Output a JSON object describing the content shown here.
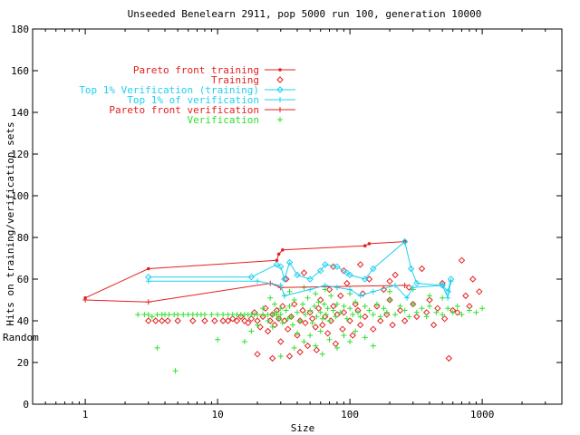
{
  "chart_data": {
    "type": "scatter",
    "title": "Unseeded Benelearn 2911, pop 5000 run 100, generation 10000",
    "xlabel": "Size",
    "ylabel": "Hits on training/verification sets",
    "ylabel2": "Random",
    "xscale": "log",
    "xlim": [
      0.4,
      4000
    ],
    "ylim": [
      0,
      180
    ],
    "x_ticks": [
      1,
      10,
      100,
      1000
    ],
    "y_ticks": [
      0,
      20,
      40,
      60,
      80,
      100,
      120,
      140,
      160,
      180
    ],
    "legend_position": "top-left",
    "grid": false,
    "random_level": 40,
    "series": [
      {
        "name": "Pareto front training",
        "style": "line-dot",
        "color": "#e52020",
        "points": [
          [
            1,
            51
          ],
          [
            3,
            65
          ],
          [
            28,
            69
          ],
          [
            29,
            72
          ],
          [
            31,
            74
          ],
          [
            130,
            76
          ],
          [
            140,
            77
          ],
          [
            260,
            78
          ]
        ]
      },
      {
        "name": "Training",
        "style": "diamond",
        "color": "#e52020",
        "points": [
          [
            3,
            40
          ],
          [
            3.4,
            40
          ],
          [
            3.8,
            40
          ],
          [
            4.2,
            40
          ],
          [
            5,
            40
          ],
          [
            6.5,
            40
          ],
          [
            8,
            40
          ],
          [
            9.5,
            40
          ],
          [
            11,
            40
          ],
          [
            12,
            40
          ],
          [
            13,
            41
          ],
          [
            14,
            40
          ],
          [
            15,
            42
          ],
          [
            16,
            40
          ],
          [
            17,
            39
          ],
          [
            18,
            41
          ],
          [
            19,
            44
          ],
          [
            20,
            40
          ],
          [
            21,
            37
          ],
          [
            22,
            42
          ],
          [
            23,
            46
          ],
          [
            24,
            35
          ],
          [
            25,
            40
          ],
          [
            26,
            43
          ],
          [
            27,
            38
          ],
          [
            28,
            45
          ],
          [
            29,
            41
          ],
          [
            30,
            30
          ],
          [
            31,
            47
          ],
          [
            32,
            40
          ],
          [
            34,
            36
          ],
          [
            36,
            42
          ],
          [
            38,
            48
          ],
          [
            40,
            33
          ],
          [
            42,
            40
          ],
          [
            44,
            45
          ],
          [
            46,
            39
          ],
          [
            48,
            28
          ],
          [
            50,
            44
          ],
          [
            52,
            41
          ],
          [
            55,
            37
          ],
          [
            58,
            46
          ],
          [
            60,
            50
          ],
          [
            62,
            38
          ],
          [
            65,
            42
          ],
          [
            68,
            34
          ],
          [
            70,
            55
          ],
          [
            72,
            40
          ],
          [
            75,
            47
          ],
          [
            78,
            29
          ],
          [
            80,
            43
          ],
          [
            85,
            52
          ],
          [
            88,
            36
          ],
          [
            90,
            44
          ],
          [
            95,
            58
          ],
          [
            100,
            40
          ],
          [
            105,
            33
          ],
          [
            110,
            48
          ],
          [
            115,
            45
          ],
          [
            120,
            38
          ],
          [
            125,
            53
          ],
          [
            130,
            42
          ],
          [
            140,
            60
          ],
          [
            150,
            36
          ],
          [
            160,
            47
          ],
          [
            170,
            40
          ],
          [
            180,
            55
          ],
          [
            190,
            43
          ],
          [
            200,
            50
          ],
          [
            210,
            38
          ],
          [
            220,
            62
          ],
          [
            240,
            45
          ],
          [
            260,
            40
          ],
          [
            280,
            56
          ],
          [
            300,
            48
          ],
          [
            320,
            42
          ],
          [
            350,
            65
          ],
          [
            380,
            44
          ],
          [
            400,
            50
          ],
          [
            430,
            38
          ],
          [
            460,
            46
          ],
          [
            500,
            58
          ],
          [
            520,
            41
          ],
          [
            560,
            22
          ],
          [
            600,
            45
          ],
          [
            650,
            44
          ],
          [
            700,
            69
          ],
          [
            750,
            52
          ],
          [
            800,
            47
          ],
          [
            850,
            60
          ],
          [
            950,
            54
          ],
          [
            35,
            23
          ],
          [
            42,
            25
          ],
          [
            56,
            26
          ],
          [
            26,
            22
          ],
          [
            20,
            24
          ],
          [
            33,
            60
          ],
          [
            45,
            63
          ],
          [
            75,
            66
          ],
          [
            90,
            64
          ],
          [
            120,
            67
          ],
          [
            200,
            59
          ]
        ]
      },
      {
        "name": "Top 1% Verification (training)",
        "style": "line-diamond",
        "color": "#20d0f0",
        "points": [
          [
            3,
            61
          ],
          [
            18,
            61
          ],
          [
            28,
            67
          ],
          [
            30,
            66
          ],
          [
            32,
            60
          ],
          [
            35,
            68
          ],
          [
            40,
            62
          ],
          [
            50,
            60
          ],
          [
            60,
            64
          ],
          [
            65,
            67
          ],
          [
            80,
            66
          ],
          [
            95,
            63
          ],
          [
            100,
            62
          ],
          [
            130,
            60
          ],
          [
            150,
            65
          ],
          [
            260,
            78
          ],
          [
            290,
            65
          ],
          [
            320,
            58
          ],
          [
            500,
            57
          ],
          [
            550,
            54
          ],
          [
            580,
            60
          ]
        ]
      },
      {
        "name": "Top 1% of verification",
        "style": "line-plus",
        "color": "#20d0f0",
        "points": [
          [
            3,
            59
          ],
          [
            20,
            59
          ],
          [
            30,
            57
          ],
          [
            32,
            52
          ],
          [
            50,
            55
          ],
          [
            65,
            57
          ],
          [
            80,
            56
          ],
          [
            100,
            55
          ],
          [
            120,
            52
          ],
          [
            150,
            54
          ],
          [
            220,
            57
          ],
          [
            270,
            51
          ],
          [
            300,
            56
          ],
          [
            500,
            57
          ],
          [
            550,
            51
          ],
          [
            580,
            59
          ]
        ]
      },
      {
        "name": "Pareto front verification",
        "style": "line-plus",
        "color": "#e52020",
        "points": [
          [
            1,
            50
          ],
          [
            3,
            49
          ],
          [
            25,
            58
          ],
          [
            30,
            56
          ],
          [
            260,
            57
          ]
        ]
      },
      {
        "name": "Verification",
        "style": "plus",
        "color": "#30e030",
        "points": [
          [
            2.5,
            43
          ],
          [
            2.8,
            43
          ],
          [
            3,
            43
          ],
          [
            3.2,
            42
          ],
          [
            3.5,
            43
          ],
          [
            3.8,
            43
          ],
          [
            4,
            43
          ],
          [
            4.3,
            43
          ],
          [
            4.7,
            43
          ],
          [
            5,
            43
          ],
          [
            5.5,
            43
          ],
          [
            6,
            43
          ],
          [
            6.5,
            43
          ],
          [
            7,
            43
          ],
          [
            7.5,
            43
          ],
          [
            8,
            43
          ],
          [
            9,
            43
          ],
          [
            10,
            43
          ],
          [
            11,
            43
          ],
          [
            12,
            43
          ],
          [
            13,
            43
          ],
          [
            14,
            43
          ],
          [
            15,
            43
          ],
          [
            16,
            43
          ],
          [
            17,
            43
          ],
          [
            18,
            43
          ],
          [
            19,
            43
          ],
          [
            20,
            43
          ],
          [
            22,
            43
          ],
          [
            24,
            43
          ],
          [
            26,
            43
          ],
          [
            28,
            43
          ],
          [
            30,
            43
          ],
          [
            3.5,
            27
          ],
          [
            4.8,
            16
          ],
          [
            10,
            31
          ],
          [
            16,
            30
          ],
          [
            18,
            35
          ],
          [
            20,
            38
          ],
          [
            22,
            46
          ],
          [
            24,
            40
          ],
          [
            26,
            37
          ],
          [
            27,
            48
          ],
          [
            28,
            44
          ],
          [
            29,
            41
          ],
          [
            30,
            46
          ],
          [
            31,
            39
          ],
          [
            32,
            52
          ],
          [
            33,
            45
          ],
          [
            34,
            41
          ],
          [
            35,
            47
          ],
          [
            36,
            42
          ],
          [
            37,
            38
          ],
          [
            38,
            50
          ],
          [
            40,
            44
          ],
          [
            42,
            40
          ],
          [
            44,
            48
          ],
          [
            46,
            43
          ],
          [
            48,
            51
          ],
          [
            50,
            45
          ],
          [
            52,
            39
          ],
          [
            54,
            47
          ],
          [
            56,
            42
          ],
          [
            58,
            49
          ],
          [
            60,
            44
          ],
          [
            62,
            41
          ],
          [
            64,
            48
          ],
          [
            66,
            43
          ],
          [
            68,
            46
          ],
          [
            70,
            40
          ],
          [
            72,
            52
          ],
          [
            75,
            45
          ],
          [
            78,
            42
          ],
          [
            80,
            48
          ],
          [
            85,
            44
          ],
          [
            90,
            47
          ],
          [
            95,
            41
          ],
          [
            100,
            46
          ],
          [
            105,
            43
          ],
          [
            110,
            49
          ],
          [
            115,
            44
          ],
          [
            120,
            42
          ],
          [
            130,
            47
          ],
          [
            140,
            45
          ],
          [
            150,
            43
          ],
          [
            160,
            48
          ],
          [
            170,
            42
          ],
          [
            180,
            46
          ],
          [
            190,
            44
          ],
          [
            200,
            50
          ],
          [
            220,
            43
          ],
          [
            240,
            47
          ],
          [
            260,
            45
          ],
          [
            280,
            42
          ],
          [
            300,
            48
          ],
          [
            320,
            44
          ],
          [
            350,
            46
          ],
          [
            380,
            42
          ],
          [
            400,
            47
          ],
          [
            450,
            44
          ],
          [
            500,
            43
          ],
          [
            550,
            46
          ],
          [
            600,
            44
          ],
          [
            650,
            47
          ],
          [
            700,
            43
          ],
          [
            800,
            45
          ],
          [
            900,
            44
          ],
          [
            1000,
            46
          ],
          [
            40,
            34
          ],
          [
            45,
            30
          ],
          [
            50,
            33
          ],
          [
            55,
            28
          ],
          [
            60,
            35
          ],
          [
            70,
            31
          ],
          [
            80,
            27
          ],
          [
            90,
            33
          ],
          [
            100,
            30
          ],
          [
            110,
            35
          ],
          [
            130,
            32
          ],
          [
            150,
            28
          ],
          [
            35,
            54
          ],
          [
            45,
            56
          ],
          [
            55,
            53
          ],
          [
            65,
            55
          ],
          [
            100,
            53
          ],
          [
            200,
            54
          ],
          [
            300,
            55
          ],
          [
            400,
            52
          ],
          [
            500,
            51
          ],
          [
            30,
            23
          ],
          [
            38,
            27
          ],
          [
            62,
            24
          ],
          [
            25,
            51
          ]
        ]
      }
    ]
  }
}
